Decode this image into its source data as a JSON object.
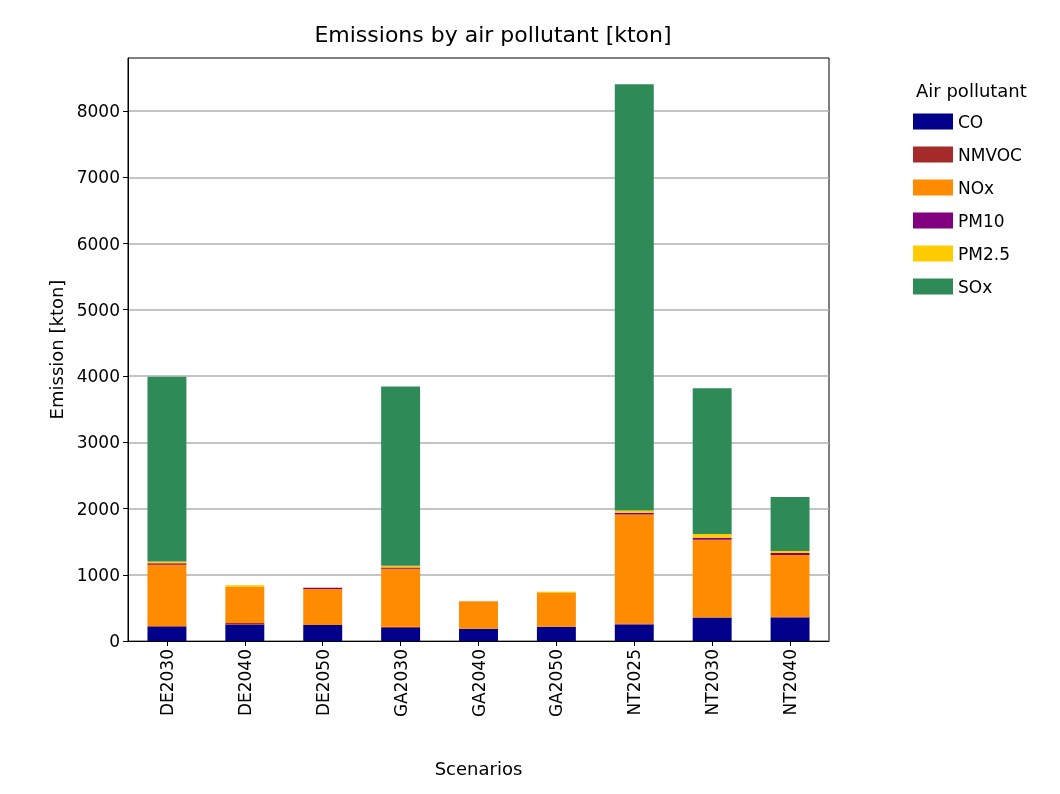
{
  "chart_data": {
    "type": "bar",
    "title": "Emissions by air pollutant [kton]",
    "xlabel": "Scenarios",
    "ylabel": "Emission [kton]",
    "legend_title": "Air pollutant",
    "categories": [
      "DE2030",
      "DE2040",
      "DE2050",
      "GA2030",
      "GA2040",
      "GA2050",
      "NT2025",
      "NT2030",
      "NT2040"
    ],
    "stacked": true,
    "series": [
      {
        "name": "CO",
        "color": "#00008b",
        "values": [
          215,
          250,
          240,
          195,
          185,
          215,
          250,
          355,
          350
        ]
      },
      {
        "name": "NMVOC",
        "color": "#a52a2a",
        "values": [
          10,
          20,
          null,
          20,
          0,
          0,
          15,
          null,
          20
        ]
      },
      {
        "name": "NOx",
        "color": "#ff8c00",
        "values": [
          925,
          545,
          545,
          875,
          415,
          510,
          1645,
          1175,
          930
        ]
      },
      {
        "name": "PM10",
        "color": "#800080",
        "values": [
          25,
          null,
          20,
          20,
          0,
          0,
          25,
          30,
          30
        ]
      },
      {
        "name": "PM2.5",
        "color": "#ffcc00",
        "values": [
          25,
          25,
          null,
          25,
          0,
          20,
          35,
          55,
          30
        ]
      },
      {
        "name": "SOx",
        "color": "#2e8b57",
        "values": [
          2790,
          0,
          0,
          2705,
          0,
          0,
          6435,
          2200,
          815
        ]
      }
    ],
    "ylim": [
      0,
      8800
    ],
    "yticks": [
      0,
      1000,
      2000,
      3000,
      4000,
      5000,
      6000,
      7000,
      8000
    ],
    "grid": "y",
    "legend": "top right"
  }
}
